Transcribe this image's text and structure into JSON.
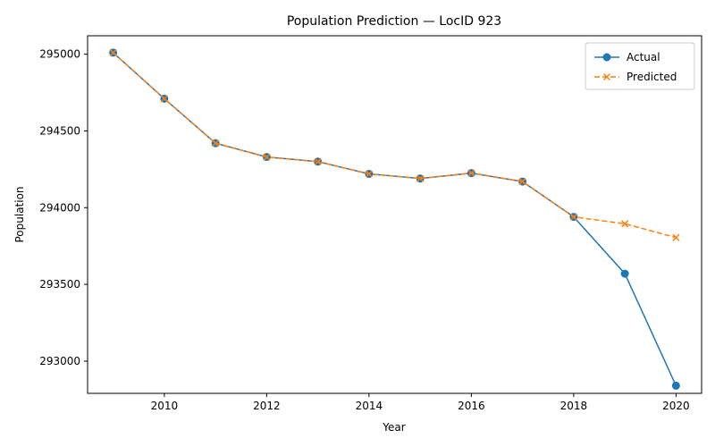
{
  "chart_data": {
    "type": "line",
    "title": "Population Prediction — LocID 923",
    "xlabel": "Year",
    "ylabel": "Population",
    "xlim": [
      2008.5,
      2020.5
    ],
    "ylim": [
      292790,
      295120
    ],
    "x_ticks": [
      2010,
      2012,
      2014,
      2016,
      2018,
      2020
    ],
    "y_ticks": [
      293000,
      293500,
      294000,
      294500,
      295000
    ],
    "grid": false,
    "legend_position": "top-right",
    "series": [
      {
        "name": "Actual",
        "color": "#1f77b4",
        "line_style": "solid",
        "marker": "circle",
        "x": [
          2009,
          2010,
          2011,
          2012,
          2013,
          2014,
          2015,
          2016,
          2017,
          2018,
          2019,
          2020
        ],
        "values": [
          295010,
          294710,
          294420,
          294330,
          294300,
          294220,
          294190,
          294225,
          294170,
          293940,
          293570,
          292840
        ]
      },
      {
        "name": "Predicted",
        "color": "#ff7f0e",
        "line_style": "dashed",
        "marker": "x",
        "x": [
          2009,
          2010,
          2011,
          2012,
          2013,
          2014,
          2015,
          2016,
          2017,
          2018,
          2019,
          2020
        ],
        "values": [
          295010,
          294710,
          294420,
          294330,
          294300,
          294220,
          294190,
          294225,
          294170,
          293940,
          293895,
          293805
        ]
      }
    ]
  }
}
